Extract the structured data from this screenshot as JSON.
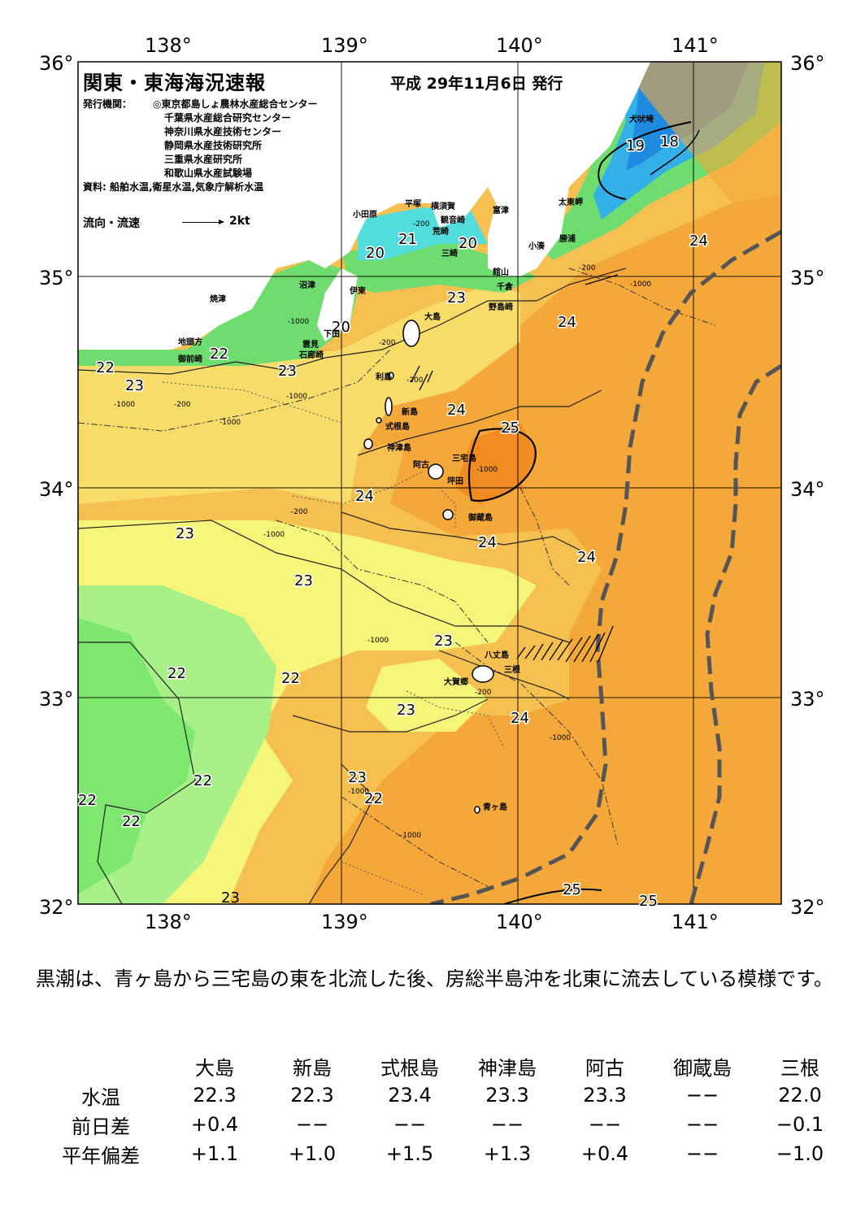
{
  "title": "関東・東海海況速報",
  "issue_date": "平成 29年11月6日 発行",
  "agencies": {
    "label": "発行機関：",
    "list": [
      "◎東京都島しょ農林水産総合センター",
      "千葉県水産総合研究センター",
      "神奈川県水産技術センター",
      "静岡県水産技術研究所",
      "三重県水産研究所",
      "和歌山県水産試験場"
    ]
  },
  "sources": "資料: 船舶水温,衛星水温,気象庁解析水温",
  "legend": {
    "label": "流向・流速",
    "scale": "2kt"
  },
  "axes": {
    "lon_labels": [
      "138°",
      "139°",
      "140°",
      "141°"
    ],
    "lat_labels": [
      "36°",
      "35°",
      "34°",
      "33°",
      "32°"
    ]
  },
  "place_names": [
    "犬吠埼",
    "太東岬",
    "勝浦",
    "小湊",
    "富津",
    "横須賀",
    "観音崎",
    "平塚",
    "荒崎",
    "三崎",
    "館山",
    "千倉",
    "野島崎",
    "小田原",
    "沼津",
    "伊東",
    "焼津",
    "下田",
    "雲見",
    "石廊崎",
    "地頭方",
    "御前崎",
    "大島",
    "利島",
    "新島",
    "式根島",
    "神津島",
    "三宅島",
    "阿古",
    "坪田",
    "御蔵島",
    "八丈島",
    "三根",
    "大賀郷",
    "青ヶ島"
  ],
  "isotherm_labels": [
    "18",
    "19",
    "20",
    "20",
    "21",
    "20",
    "22",
    "22",
    "22",
    "23",
    "23",
    "23",
    "23",
    "23",
    "23",
    "23",
    "23",
    "24",
    "24",
    "24",
    "24",
    "24",
    "24",
    "24",
    "25",
    "25",
    "25",
    "22",
    "22",
    "22",
    "22",
    "22"
  ],
  "depth_labels": [
    "-200",
    "-200",
    "-1000",
    "-200",
    "-1000",
    "-1000",
    "-200",
    "-1000",
    "-200",
    "-1000",
    "-1000",
    "-200",
    "-1000",
    "-1000",
    "-200",
    "-1000",
    "-1000",
    "-1000"
  ],
  "colors": {
    "water18": "#1e8be0",
    "water19": "#33b0e8",
    "water20": "#52dcdc",
    "water21": "#60dcb0",
    "water22": "#6fdc6f",
    "water22b": "#a8f088",
    "water23": "#f5f57a",
    "water23b": "#f7dc6a",
    "water24": "#f5c050",
    "water24b": "#f5a83a",
    "water25": "#f08c22",
    "land": "#ffffff",
    "kuroshio": "#555555"
  },
  "summary": "黒潮は、青ヶ島から三宅島の東を北流した後、房総半島沖を北東に流去している模様です。",
  "table": {
    "stations": [
      "大島",
      "新島",
      "式根島",
      "神津島",
      "阿古",
      "御蔵島",
      "三根"
    ],
    "rows": [
      {
        "label": "水温",
        "values": [
          "22.3",
          "22.3",
          "23.4",
          "23.3",
          "23.3",
          "−−",
          "22.0"
        ]
      },
      {
        "label": "前日差",
        "values": [
          "+0.4",
          "−−",
          "−−",
          "−−",
          "−−",
          "−−",
          "−0.1"
        ]
      },
      {
        "label": "平年偏差",
        "values": [
          "+1.1",
          "+1.0",
          "+1.5",
          "+1.3",
          "+0.4",
          "−−",
          "−1.0"
        ]
      }
    ]
  }
}
